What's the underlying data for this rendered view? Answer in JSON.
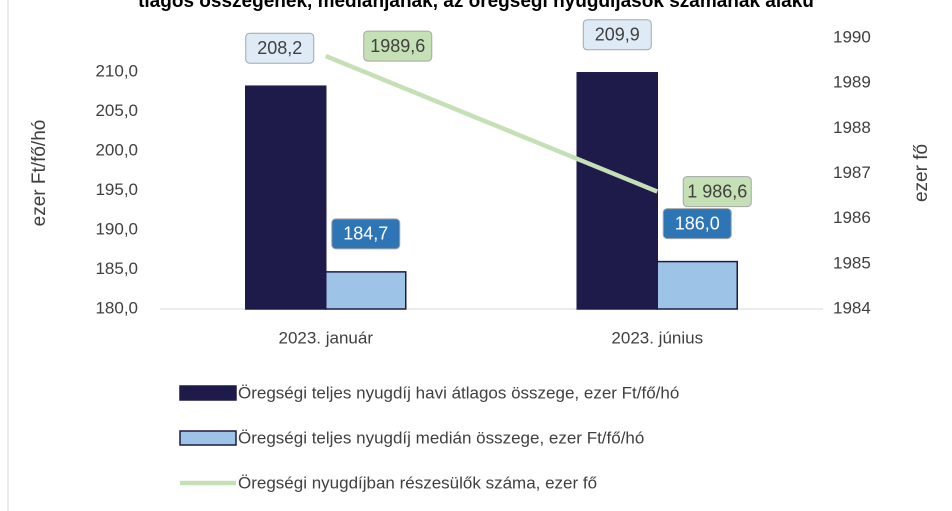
{
  "chart_data": {
    "type": "bar",
    "title": "tlagos összegének, mediánjának, az öregségi nyugdíjasok számának alaku",
    "categories": [
      "2023. január",
      "2023. június"
    ],
    "y_label": "ezer Ft/fő/hó",
    "y2_label": "ezer fő",
    "ylim": [
      180,
      214.3
    ],
    "yticks": [
      {
        "value": 180,
        "label": "180,0"
      },
      {
        "value": 185,
        "label": "185,0"
      },
      {
        "value": 190,
        "label": "190,0"
      },
      {
        "value": 195,
        "label": "195,0"
      },
      {
        "value": 200,
        "label": "200,0"
      },
      {
        "value": 205,
        "label": "205,0"
      },
      {
        "value": 210,
        "label": "210,0"
      }
    ],
    "y2lim": [
      1984,
      1990
    ],
    "y2ticks": [
      1984,
      1985,
      1986,
      1987,
      1988,
      1989,
      1990
    ],
    "series": [
      {
        "name": "Öregségi teljes nyugdíj havi átlagos összege, ezer Ft/fő/hó",
        "color": "#1e1a4a",
        "type": "bar",
        "values": [
          208.2,
          209.9
        ],
        "value_labels": [
          "208,2",
          "209,9"
        ]
      },
      {
        "name": "Öregségi teljes nyugdíj medián összege, ezer Ft/fő/hó",
        "color": "#9dc3e6",
        "type": "bar",
        "values": [
          184.7,
          186.0
        ],
        "value_labels": [
          "184,7",
          "186,0"
        ]
      },
      {
        "name": "Öregségi nyugdíjban részesülők száma, ezer fő",
        "color": "#c5e0b4",
        "type": "line",
        "axis": "y2",
        "values": [
          1989.6,
          1986.6
        ],
        "value_labels": [
          "1989,6",
          "1 986,6"
        ]
      }
    ]
  }
}
